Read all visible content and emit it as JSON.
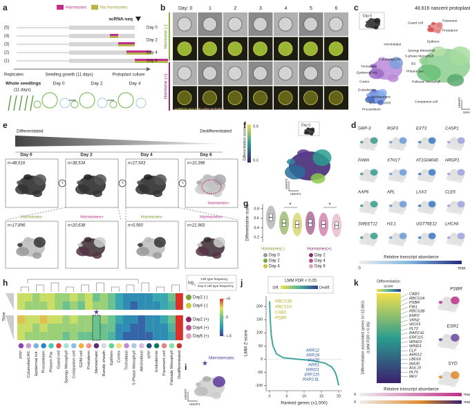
{
  "panels": [
    "a",
    "b",
    "c",
    "d",
    "e",
    "f",
    "g",
    "h",
    "i",
    "j",
    "k"
  ],
  "a": {
    "hormones": "Hormones",
    "no_hormones": "No hormones",
    "scrna": "scRNA-seq",
    "replicate_ids": [
      "(5)",
      "(4)",
      "(3)",
      "(2)",
      "(1)"
    ],
    "days": [
      "Day 0",
      "Day 2",
      "Day 4",
      "Day 6"
    ],
    "replicates": "Replicates",
    "seedling_growth": "Seedling growth (11 days)",
    "protoplast_culture": "Protoplast culture",
    "whole_seedlings": "Whole seedlings",
    "duration": "(11 days)",
    "stages": [
      "Day 0",
      "Day 2",
      "Day 4"
    ]
  },
  "b": {
    "day_prefix": "Day: 0",
    "days": [
      1,
      2,
      3,
      4,
      5,
      6
    ],
    "hormone_minus": "Hormone (-)",
    "hormone_plus": "Hormone (+)",
    "markers": [
      "pUBQ10::myr-YFP",
      "p35S::H2B-RFP"
    ]
  },
  "c": {
    "title": "48,616 nascent protoplasts (Day 0)",
    "inset": "Day 0",
    "clusters": [
      "Guard cell",
      "Pavement",
      "Protoderm",
      "Epithem",
      "Atrichoblast",
      "Spongy Mesophyll",
      "S-phase Mesophyll",
      "Columella/LRC",
      "Trichoblast",
      "Epidermal init.",
      "Cortex",
      "BS",
      "Phloem par.",
      "Palisade Mesophyll",
      "Endodermis",
      "Meristematic",
      "XPP",
      "PPP",
      "Companion cell",
      "Procambium"
    ],
    "umap_x": "UMAP1",
    "umap_y": "UMAP2"
  },
  "d": {
    "genes": [
      "GRP-3",
      "RGF3",
      "EXT3",
      "CASP1",
      "FAMA",
      "XTH17",
      "AT1G04040",
      "HRGP1",
      "AAP6",
      "APL",
      "LAX3",
      "CLE5",
      "SWEET12",
      "H3.1",
      "UGT76E12",
      "LHCA6"
    ],
    "scale_title": "Relative transcript abundance",
    "scale_min": 0,
    "scale_max": "max"
  },
  "e": {
    "differentiated": "Differentiated",
    "dedifferentiated": "Dedifferentiated",
    "days": [
      "Day 0",
      "Day 2",
      "Day 4",
      "Day 6"
    ],
    "n_top": [
      "n=48,616",
      "n=38,534",
      "n=27,543",
      "n=10,398"
    ],
    "hormones_plus": "Hormones+",
    "groups": [
      "Hormones-",
      "Hormones+",
      "Hormones-",
      "Hormones+"
    ],
    "n_bottom": [
      "n=17,896",
      "n=20,638",
      "n=5,560",
      "n=21,983"
    ]
  },
  "f": {
    "inset": "Day 0",
    "colorbar_title": "Differentiation score",
    "colorbar_ticks": [
      0.9,
      0.3
    ],
    "umap_x": "UMAP1",
    "umap_y": "UMAP2"
  },
  "g": {
    "y_label": "Differentiation score",
    "ylim": [
      0.1,
      0.9
    ],
    "yticks": [
      0.2,
      0.4,
      0.6,
      0.8
    ],
    "values": [
      0.62,
      0.5,
      0.47,
      0.5,
      0.47,
      0.45
    ],
    "significance": [
      "*",
      "*"
    ],
    "legend_minus": "Hormones(-)",
    "legend_plus": "Hormones(+)",
    "legend_minus_days": [
      "Day 0",
      "Day 2",
      "Day 4"
    ],
    "legend_plus_days": [
      "Day 2",
      "Day 4",
      "Day 6"
    ]
  },
  "h": {
    "time": "Time",
    "rows": [
      "Day2 (-)",
      "Day4 (-)",
      "Day2 (+)",
      "Day4 (+)",
      "Day6 (+)"
    ],
    "columns": [
      "PPP",
      "Columella/LRC",
      "Epidermal init.",
      "Procambium",
      "Phloem Par.",
      "Guard cell",
      "Spongy Mesophyll",
      "Companion cell",
      "G2/M cell",
      "Protoderm",
      "Meristematic",
      "Bundle sheath",
      "Epithem",
      "Cortex",
      "Trichoblast",
      "S-Phase Mesophyll",
      "Atrichoblast",
      "XPP",
      "Endodermis",
      "Pavement cell",
      "Palisade Mesophyll",
      "Dedifferentiated"
    ],
    "values": [
      [
        2,
        2,
        1,
        2,
        2,
        1,
        1,
        2,
        1,
        2,
        0,
        1,
        0,
        -2,
        -3,
        -3,
        -3,
        -3,
        -2,
        -2,
        0,
        5
      ],
      [
        2,
        1,
        1,
        1,
        2,
        1,
        0,
        1,
        0,
        2,
        1,
        1,
        0,
        -2,
        -3,
        -4,
        -3,
        -3,
        -3,
        -2,
        -1,
        5
      ],
      [
        3,
        2,
        2,
        3,
        2,
        2,
        1,
        2,
        1,
        1,
        0,
        1,
        0,
        -2,
        -3,
        -3,
        -4,
        -3,
        -3,
        -2,
        0,
        5
      ],
      [
        2,
        2,
        1,
        2,
        1,
        1,
        1,
        1,
        1,
        1,
        0,
        0,
        0,
        -3,
        -3,
        -4,
        -4,
        -3,
        -3,
        -3,
        -1,
        5
      ],
      [
        2,
        1,
        1,
        1,
        1,
        1,
        0,
        1,
        0,
        0,
        0,
        0,
        -1,
        -3,
        -4,
        -4,
        -4,
        -4,
        -3,
        -3,
        -2,
        5
      ]
    ],
    "log": "log",
    "log_base": "2",
    "numerator": "Cell type frequency",
    "denominator": "Day 0 cell type frequency",
    "scale_ticks": [
      {
        "value": 5,
        "label": ">5"
      },
      0,
      {
        "value": -5,
        "label": "<-5"
      }
    ],
    "star": "★"
  },
  "i": {
    "title": "Meristematic",
    "star": "★",
    "umap_x": "UMAP1",
    "umap_y": "UMAP2"
  },
  "j": {
    "legend_title": "LMM FDR < 0.05",
    "legend_diff": "Diff.",
    "legend_dediff": "Dediff.",
    "y_label": "LMM Z-score",
    "x_label": "Ranked genes (x1,000)",
    "xlim": [
      -1,
      21
    ],
    "ylim": [
      -120,
      240
    ],
    "xticks": [
      0,
      5,
      10,
      15,
      20
    ],
    "yticks": [
      200,
      150,
      100,
      50,
      0,
      -50,
      -100
    ],
    "x": [
      0,
      0.2,
      0.5,
      1,
      2,
      4,
      8,
      12,
      16,
      18,
      19,
      19.5,
      20
    ],
    "y": [
      220,
      150,
      90,
      50,
      20,
      5,
      0,
      -5,
      -15,
      -30,
      -50,
      -70,
      -100
    ],
    "top_genes": [
      "RBCS3B",
      "RBCS1A",
      "CAB3",
      "PSBR"
    ],
    "bottom_genes": [
      "ARR12",
      "ARR18",
      "IAA30",
      "ARR1",
      "WIND1",
      "ERF115",
      "RAP2.6L"
    ]
  },
  "k": {
    "score_title": "Differentiation",
    "score_title2": "score",
    "y_label": "Differentiation associated genes (n=12,661)",
    "y_label2": "(LMM FDR < 0.05)",
    "genes": [
      "CAB3",
      "RBCS1A",
      "PSBR",
      "FIB1",
      "RBCS3B",
      "EMF2",
      "VRN2",
      "WOX5",
      "PLT2",
      "RAP2.6L",
      "ERF115",
      "WIND3",
      "WIND1",
      "CLF",
      "ARR12",
      "LBD16",
      "IAA30",
      "AGL15",
      "PLT5",
      "REV"
    ],
    "umap_genes": [
      "PSBR",
      "ESR1",
      "SYD"
    ],
    "scale_title": "Relative transcript abundance",
    "scale_min": [
      0,
      0
    ],
    "scale_max": [
      "max",
      "max"
    ]
  }
}
